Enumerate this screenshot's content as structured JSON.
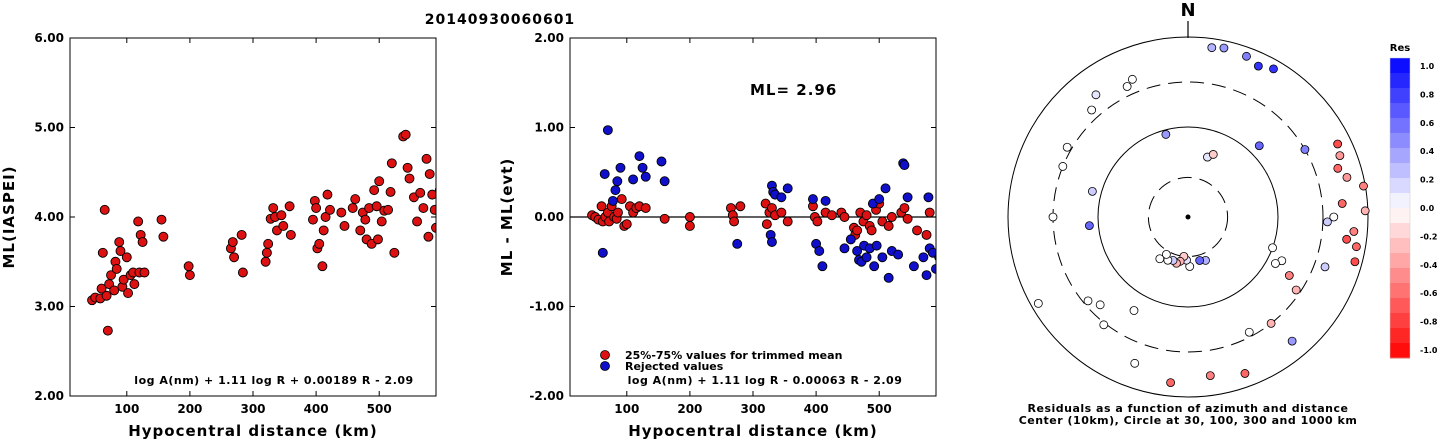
{
  "title": "20140930060601",
  "chart_data": [
    {
      "type": "scatter",
      "xlabel": "Hypocentral distance (km)",
      "ylabel": "ML(IASPEI)",
      "xlim": [
        10,
        590
      ],
      "ylim": [
        2.0,
        6.0
      ],
      "xticks": [
        100,
        200,
        300,
        400,
        500
      ],
      "yticks": [
        "2.00",
        "3.00",
        "4.00",
        "5.00",
        "6.00"
      ],
      "formula": "log A(nm) + 1.11 log R + 0.00189 R - 2.09",
      "color": "#dd1111",
      "points": [
        [
          45,
          3.07
        ],
        [
          50,
          3.1
        ],
        [
          58,
          3.09
        ],
        [
          60,
          3.2
        ],
        [
          62,
          3.6
        ],
        [
          65,
          4.08
        ],
        [
          68,
          3.12
        ],
        [
          70,
          2.73
        ],
        [
          72,
          3.25
        ],
        [
          75,
          3.35
        ],
        [
          80,
          3.18
        ],
        [
          82,
          3.5
        ],
        [
          84,
          3.42
        ],
        [
          88,
          3.72
        ],
        [
          90,
          3.62
        ],
        [
          93,
          3.22
        ],
        [
          95,
          3.3
        ],
        [
          100,
          3.55
        ],
        [
          102,
          3.15
        ],
        [
          106,
          3.35
        ],
        [
          110,
          3.38
        ],
        [
          112,
          3.25
        ],
        [
          118,
          3.95
        ],
        [
          120,
          3.38
        ],
        [
          122,
          3.8
        ],
        [
          125,
          3.72
        ],
        [
          128,
          3.38
        ],
        [
          155,
          3.97
        ],
        [
          158,
          3.78
        ],
        [
          198,
          3.45
        ],
        [
          200,
          3.35
        ],
        [
          265,
          3.65
        ],
        [
          268,
          3.72
        ],
        [
          270,
          3.55
        ],
        [
          282,
          3.8
        ],
        [
          284,
          3.38
        ],
        [
          320,
          3.5
        ],
        [
          322,
          3.6
        ],
        [
          324,
          3.7
        ],
        [
          328,
          3.98
        ],
        [
          332,
          4.1
        ],
        [
          335,
          4.0
        ],
        [
          338,
          3.85
        ],
        [
          345,
          4.02
        ],
        [
          348,
          3.9
        ],
        [
          358,
          4.12
        ],
        [
          360,
          3.8
        ],
        [
          395,
          3.97
        ],
        [
          398,
          4.18
        ],
        [
          400,
          4.1
        ],
        [
          402,
          3.65
        ],
        [
          405,
          3.7
        ],
        [
          410,
          3.45
        ],
        [
          412,
          3.85
        ],
        [
          415,
          4.0
        ],
        [
          418,
          4.25
        ],
        [
          422,
          4.08
        ],
        [
          440,
          4.05
        ],
        [
          445,
          3.9
        ],
        [
          458,
          4.1
        ],
        [
          462,
          4.2
        ],
        [
          470,
          3.85
        ],
        [
          474,
          4.05
        ],
        [
          478,
          3.97
        ],
        [
          480,
          3.75
        ],
        [
          484,
          4.1
        ],
        [
          488,
          3.7
        ],
        [
          492,
          4.3
        ],
        [
          496,
          4.12
        ],
        [
          498,
          3.75
        ],
        [
          500,
          4.4
        ],
        [
          504,
          3.95
        ],
        [
          508,
          4.07
        ],
        [
          514,
          4.08
        ],
        [
          518,
          4.28
        ],
        [
          520,
          4.6
        ],
        [
          524,
          3.6
        ],
        [
          538,
          4.9
        ],
        [
          542,
          4.92
        ],
        [
          545,
          4.55
        ],
        [
          548,
          4.43
        ],
        [
          555,
          4.22
        ],
        [
          560,
          3.95
        ],
        [
          565,
          4.27
        ],
        [
          570,
          4.1
        ],
        [
          575,
          4.65
        ],
        [
          578,
          3.78
        ],
        [
          580,
          4.48
        ],
        [
          584,
          4.25
        ],
        [
          588,
          4.08
        ],
        [
          590,
          3.88
        ],
        [
          596,
          4.3
        ]
      ]
    },
    {
      "type": "scatter",
      "xlabel": "Hypocentral distance (km)",
      "ylabel": "ML - ML(evt)",
      "xlim": [
        10,
        590
      ],
      "ylim": [
        -2.0,
        2.0
      ],
      "xticks": [
        100,
        200,
        300,
        400,
        500
      ],
      "yticks": [
        "-2.00",
        "-1.00",
        "0.00",
        "1.00",
        "2.00"
      ],
      "ml_label": "ML= 2.96",
      "formula": "log A(nm) + 1.11 log R - 0.00063 R - 2.09",
      "legend": [
        {
          "label": "25%-75% values for trimmed mean",
          "color": "#dd1111"
        },
        {
          "label": "Rejected values",
          "color": "#1010cc"
        }
      ],
      "series": [
        {
          "name": "25%-75% values for trimmed mean",
          "color": "#dd1111",
          "points": [
            [
              45,
              0.02
            ],
            [
              50,
              0.0
            ],
            [
              55,
              -0.03
            ],
            [
              60,
              0.12
            ],
            [
              62,
              -0.05
            ],
            [
              66,
              0.0
            ],
            [
              70,
              0.05
            ],
            [
              72,
              -0.05
            ],
            [
              76,
              0.12
            ],
            [
              80,
              0.0
            ],
            [
              84,
              -0.02
            ],
            [
              86,
              0.05
            ],
            [
              92,
              0.2
            ],
            [
              96,
              -0.1
            ],
            [
              100,
              -0.08
            ],
            [
              105,
              0.12
            ],
            [
              110,
              0.05
            ],
            [
              115,
              0.1
            ],
            [
              120,
              0.12
            ],
            [
              130,
              0.1
            ],
            [
              160,
              -0.02
            ],
            [
              200,
              0.0
            ],
            [
              200,
              -0.1
            ],
            [
              265,
              0.1
            ],
            [
              268,
              0.02
            ],
            [
              270,
              -0.05
            ],
            [
              280,
              0.12
            ],
            [
              320,
              0.15
            ],
            [
              322,
              -0.08
            ],
            [
              326,
              0.05
            ],
            [
              330,
              0.1
            ],
            [
              335,
              0.02
            ],
            [
              345,
              0.05
            ],
            [
              355,
              -0.05
            ],
            [
              395,
              0.12
            ],
            [
              398,
              0.0
            ],
            [
              402,
              -0.05
            ],
            [
              415,
              0.05
            ],
            [
              425,
              0.02
            ],
            [
              440,
              0.05
            ],
            [
              445,
              0.0
            ],
            [
              460,
              -0.12
            ],
            [
              462,
              -0.2
            ],
            [
              465,
              -0.15
            ],
            [
              470,
              0.05
            ],
            [
              475,
              -0.05
            ],
            [
              480,
              0.02
            ],
            [
              485,
              -0.1
            ],
            [
              488,
              -0.15
            ],
            [
              495,
              0.08
            ],
            [
              500,
              0.15
            ],
            [
              505,
              -0.05
            ],
            [
              515,
              -0.1
            ],
            [
              520,
              0.0
            ],
            [
              535,
              0.05
            ],
            [
              540,
              0.1
            ],
            [
              545,
              -0.02
            ],
            [
              560,
              -0.15
            ],
            [
              575,
              -0.2
            ],
            [
              580,
              0.05
            ]
          ]
        },
        {
          "name": "Rejected values",
          "color": "#1010cc",
          "points": [
            [
              62,
              -0.4
            ],
            [
              65,
              0.48
            ],
            [
              70,
              0.97
            ],
            [
              78,
              0.18
            ],
            [
              82,
              0.3
            ],
            [
              85,
              0.4
            ],
            [
              90,
              0.55
            ],
            [
              110,
              0.42
            ],
            [
              120,
              0.68
            ],
            [
              125,
              0.55
            ],
            [
              130,
              0.45
            ],
            [
              155,
              0.62
            ],
            [
              160,
              0.4
            ],
            [
              275,
              -0.3
            ],
            [
              328,
              -0.2
            ],
            [
              330,
              -0.28
            ],
            [
              330,
              0.35
            ],
            [
              332,
              0.28
            ],
            [
              335,
              0.25
            ],
            [
              345,
              0.22
            ],
            [
              355,
              0.32
            ],
            [
              395,
              0.2
            ],
            [
              400,
              -0.3
            ],
            [
              405,
              -0.38
            ],
            [
              410,
              -0.55
            ],
            [
              415,
              0.18
            ],
            [
              445,
              -0.35
            ],
            [
              455,
              -0.25
            ],
            [
              465,
              -0.38
            ],
            [
              468,
              -0.48
            ],
            [
              472,
              -0.5
            ],
            [
              476,
              -0.32
            ],
            [
              480,
              -0.45
            ],
            [
              485,
              -0.35
            ],
            [
              490,
              0.15
            ],
            [
              492,
              -0.55
            ],
            [
              496,
              -0.32
            ],
            [
              500,
              0.2
            ],
            [
              505,
              -0.45
            ],
            [
              510,
              0.32
            ],
            [
              515,
              -0.68
            ],
            [
              520,
              -0.38
            ],
            [
              530,
              -0.42
            ],
            [
              538,
              0.6
            ],
            [
              540,
              0.58
            ],
            [
              545,
              0.22
            ],
            [
              555,
              -0.55
            ],
            [
              570,
              -0.45
            ],
            [
              575,
              -0.65
            ],
            [
              578,
              0.22
            ],
            [
              580,
              -0.35
            ],
            [
              585,
              -0.4
            ],
            [
              590,
              -0.58
            ],
            [
              595,
              -0.45
            ]
          ]
        }
      ]
    },
    {
      "type": "scatter",
      "subtype": "polar-residuals",
      "north_label": "N",
      "caption_line1": "Residuals as a function of azimuth and distance",
      "caption_line2": "Center (10km), Circle at 30, 100, 300 and 1000 km",
      "colorbar_title": "Res",
      "colorbar_ticks": [
        "1.0",
        "0.8",
        "0.6",
        "0.4",
        "0.2",
        "0.0",
        "-0.2",
        "-0.4",
        "-0.6",
        "-0.8",
        "-1.0"
      ],
      "rings_km": [
        30,
        100,
        300,
        1000
      ],
      "stations": [
        [
          178,
          0.55,
          0.0
        ],
        [
          182,
          0.48,
          0.1
        ],
        [
          186,
          0.44,
          -0.2
        ],
        [
          190,
          0.5,
          -0.3
        ],
        [
          194,
          0.53,
          -0.3
        ],
        [
          199,
          0.51,
          0.2
        ],
        [
          205,
          0.53,
          0.0
        ],
        [
          210,
          0.48,
          0.0
        ],
        [
          214,
          0.56,
          0.0
        ],
        [
          158,
          0.52,
          0.3
        ],
        [
          165,
          0.5,
          0.6
        ],
        [
          230,
          1.45,
          0.0
        ],
        [
          225,
          1.38,
          0.0
        ],
        [
          218,
          1.52,
          0.0
        ],
        [
          240,
          1.92,
          0.0
        ],
        [
          210,
          1.2,
          0.0
        ],
        [
          200,
          1.73,
          0.0
        ],
        [
          186,
          1.85,
          -0.6
        ],
        [
          172,
          1.78,
          -0.5
        ],
        [
          160,
          1.85,
          -0.6
        ],
        [
          152,
          1.45,
          0.0
        ],
        [
          142,
          1.5,
          -0.3
        ],
        [
          140,
          1.8,
          0.4
        ],
        [
          110,
          1.62,
          0.2
        ],
        [
          105,
          1.92,
          -0.7
        ],
        [
          100,
          1.9,
          -0.6
        ],
        [
          98,
          1.78,
          -0.7
        ],
        [
          95,
          1.85,
          -0.5
        ],
        [
          92,
          1.55,
          0.2
        ],
        [
          90,
          1.62,
          0.0
        ],
        [
          88,
          1.97,
          -0.3
        ],
        [
          85,
          1.72,
          -0.6
        ],
        [
          80,
          1.98,
          -0.5
        ],
        [
          76,
          1.82,
          -0.4
        ],
        [
          72,
          1.75,
          -0.6
        ],
        [
          68,
          1.82,
          -0.4
        ],
        [
          64,
          1.85,
          -0.7
        ],
        [
          110,
          1.0,
          0.0
        ],
        [
          115,
          1.15,
          0.0
        ],
        [
          118,
          1.1,
          0.0
        ],
        [
          120,
          1.3,
          -0.5
        ],
        [
          124,
          1.45,
          -0.3
        ],
        [
          60,
          1.5,
          0.5
        ],
        [
          20,
          1.9,
          0.5
        ],
        [
          25,
          1.85,
          0.8
        ],
        [
          30,
          1.9,
          0.8
        ],
        [
          8,
          1.9,
          0.3
        ],
        [
          12,
          1.92,
          0.4
        ],
        [
          335,
          1.6,
          0.0
        ],
        [
          338,
          1.65,
          0.0
        ],
        [
          323,
          1.7,
          0.1
        ],
        [
          318,
          1.6,
          0.0
        ],
        [
          300,
          1.55,
          0.0
        ],
        [
          292,
          1.5,
          0.0
        ],
        [
          270,
          1.5,
          0.0
        ],
        [
          265,
          1.1,
          0.6
        ],
        [
          285,
          1.1,
          0.2
        ],
        [
          345,
          0.95,
          0.4
        ],
        [
          18,
          0.7,
          0.1
        ],
        [
          22,
          0.75,
          -0.2
        ],
        [
          45,
          1.12,
          0.6
        ]
      ]
    }
  ]
}
